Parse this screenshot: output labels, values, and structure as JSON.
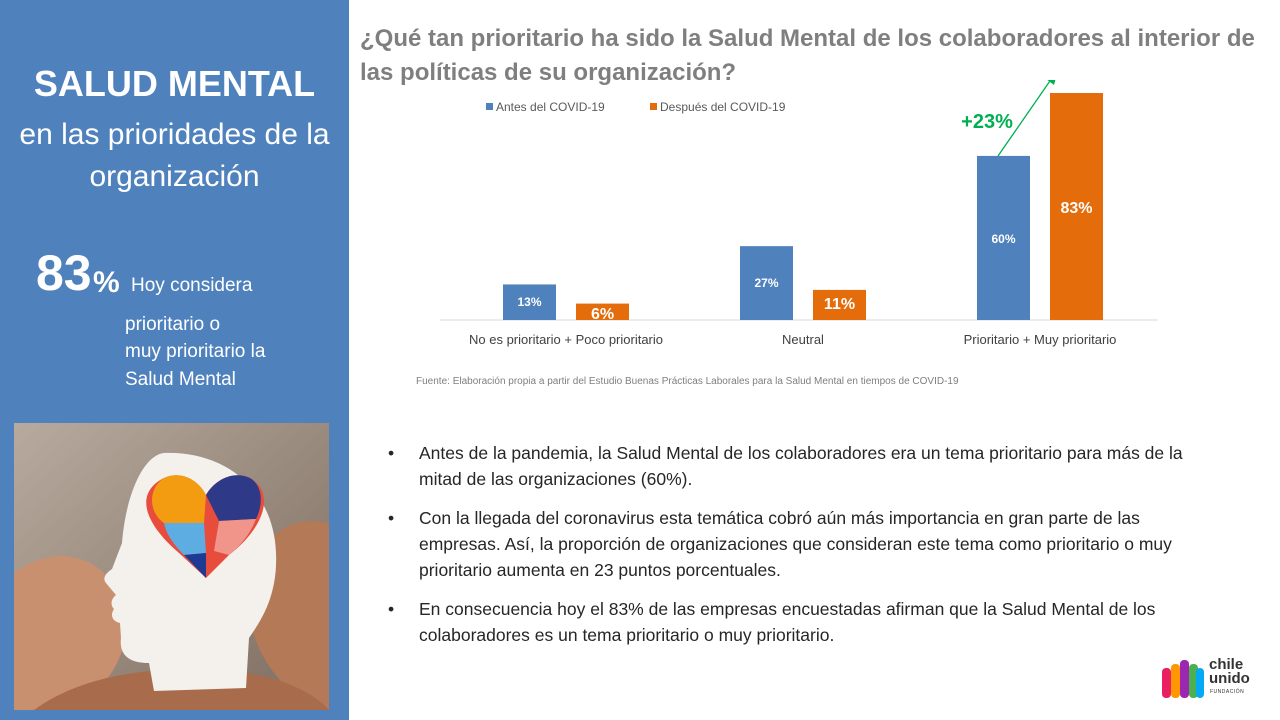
{
  "left": {
    "title": "SALUD MENTAL",
    "subtitle_lines": [
      "en las prioridades de la",
      "organización"
    ],
    "stat_value": "83",
    "stat_unit": "%",
    "stat_lines": [
      "Hoy considera",
      "prioritario o",
      "muy prioritario la",
      "Salud Mental"
    ]
  },
  "question": "¿Qué tan prioritario ha sido la Salud Mental de los colaboradores al interior de las políticas de su organización?",
  "chart_data": {
    "type": "bar",
    "categories": [
      "No es prioritario + Poco prioritario",
      "Neutral",
      "Prioritario + Muy prioritario"
    ],
    "series": [
      {
        "name": "Antes del COVID-19",
        "values": [
          13,
          27,
          60
        ],
        "labels": [
          "13%",
          "27%",
          "60%"
        ],
        "color": "#4f81bd"
      },
      {
        "name": "Después del COVID-19",
        "values": [
          6,
          11,
          83
        ],
        "labels": [
          "6%",
          "11%",
          "83%"
        ],
        "color": "#e46c0a"
      }
    ],
    "annotation": {
      "text": "+23%",
      "color": "#00b050"
    },
    "legend": "top-left",
    "ylim": [
      0,
      83
    ],
    "grid": false
  },
  "source": "Fuente: Elaboración propia a partir del Estudio Buenas Prácticas Laborales para la Salud Mental en tiempos de COVID-19",
  "bullets": [
    "Antes de la pandemia, la Salud Mental de los colaboradores era un tema prioritario para más de la mitad de las organizaciones (60%).",
    "Con la llegada del coronavirus esta temática cobró aún más importancia en gran parte de las empresas. Así, la proporción de organizaciones que consideran este tema como prioritario o muy prioritario aumenta en 23 puntos porcentuales.",
    "En consecuencia hoy el 83% de las empresas encuestadas afirman que la Salud Mental de los colaboradores es un tema prioritario o muy prioritario."
  ],
  "bullet_symbol": "•",
  "logo": {
    "line1": "chile",
    "line2": "unido",
    "sub": "FUNDACIÓN"
  }
}
